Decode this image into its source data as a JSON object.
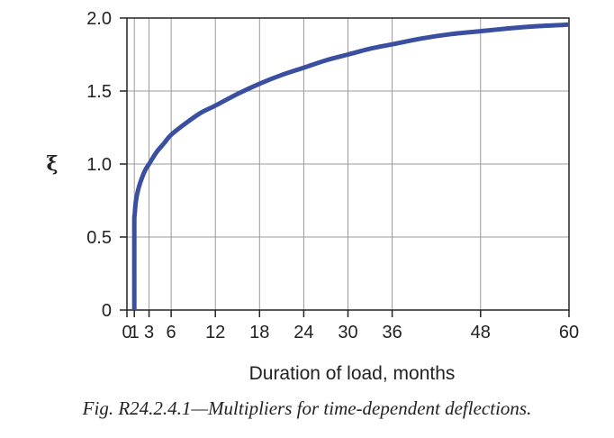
{
  "chart_data": {
    "type": "line",
    "title": "",
    "caption": "Fig. R24.2.4.1—Multipliers for time-dependent deflections.",
    "xlabel": "Duration of load, months",
    "ylabel": "ξ",
    "xlim": [
      0,
      60
    ],
    "ylim": [
      0,
      2.0
    ],
    "x_ticks": [
      0,
      1,
      3,
      6,
      12,
      18,
      24,
      30,
      36,
      48,
      60
    ],
    "x_tick_labels": [
      "0",
      "1",
      "3",
      "6",
      "12",
      "18",
      "24",
      "30",
      "36",
      "48",
      "60"
    ],
    "y_ticks": [
      0,
      0.5,
      1.0,
      1.5,
      2.0
    ],
    "y_tick_labels": [
      "0",
      "0.5",
      "1.0",
      "1.5",
      "2.0"
    ],
    "grid": true,
    "series": [
      {
        "color": "#3b4fa0",
        "x": [
          1,
          1,
          1.05,
          1.2,
          1.5,
          2,
          2.5,
          3,
          4,
          5,
          6,
          8,
          10,
          12,
          15,
          18,
          21,
          24,
          27,
          30,
          33,
          36,
          40,
          44,
          48,
          52,
          56,
          60
        ],
        "y": [
          0,
          0.58,
          0.65,
          0.74,
          0.82,
          0.9,
          0.96,
          1.0,
          1.08,
          1.14,
          1.2,
          1.28,
          1.35,
          1.4,
          1.48,
          1.55,
          1.61,
          1.66,
          1.71,
          1.75,
          1.79,
          1.82,
          1.86,
          1.89,
          1.91,
          1.93,
          1.945,
          1.955
        ]
      }
    ]
  }
}
